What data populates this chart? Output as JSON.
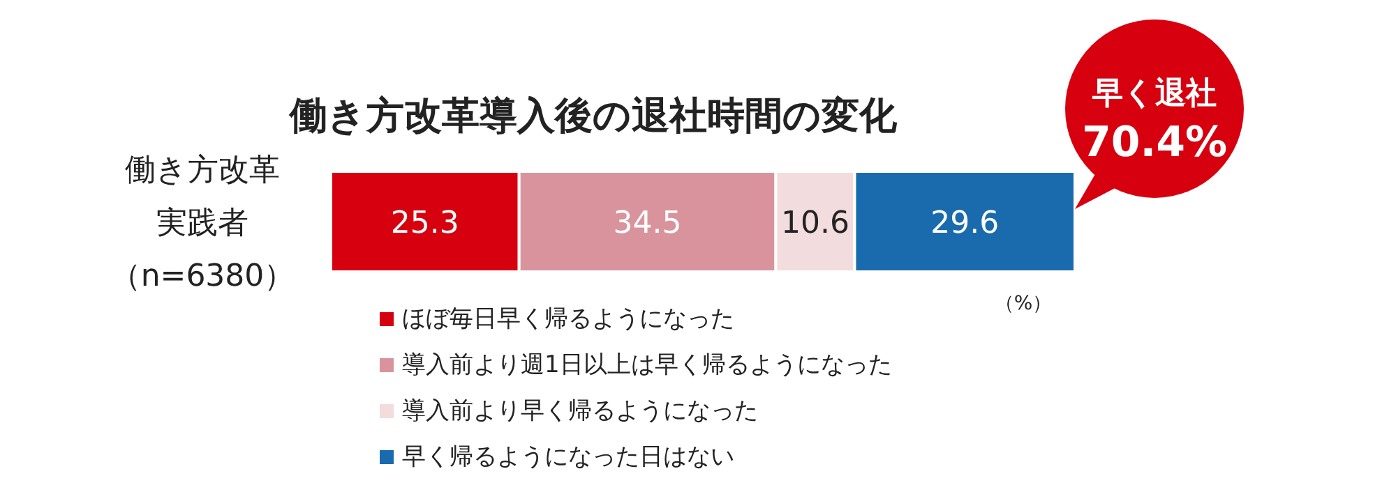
{
  "chart_data": {
    "type": "bar",
    "orientation": "horizontal",
    "stacked": true,
    "title": "働き方改革導入後の退社時間の変化",
    "categories": [
      "働き方改革実践者（n=6380）"
    ],
    "series": [
      {
        "name": "ほぼ毎日早く帰るようになった",
        "color": "#d7000f",
        "values": [
          25.3
        ]
      },
      {
        "name": "導入前より週1日以上は早く帰るようになった",
        "color": "#d9939c",
        "values": [
          34.5
        ]
      },
      {
        "name": "導入前より早く帰るようになった",
        "color": "#f2dcdd",
        "values": [
          10.6
        ]
      },
      {
        "name": "早く帰るようになった日はない",
        "color": "#1a6aae",
        "values": [
          29.6
        ]
      }
    ],
    "xlim": [
      0,
      100
    ],
    "data_labels": true,
    "legend": "bottom",
    "annotations": [
      "（%）",
      "早く退社",
      "70.4%"
    ]
  }
}
